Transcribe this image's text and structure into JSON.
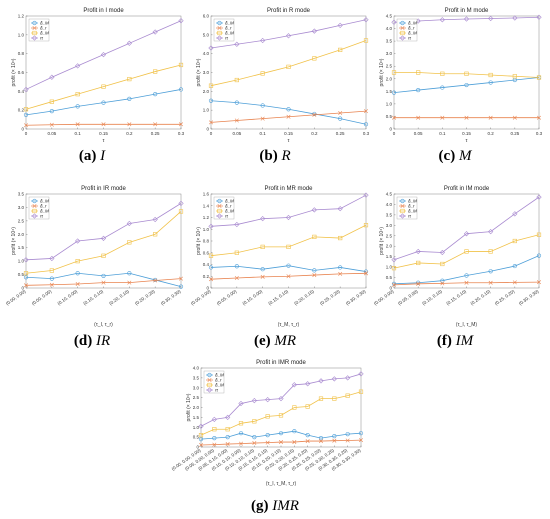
{
  "colors": {
    "blue": "#4e9fd8",
    "orange": "#e8834f",
    "yellow": "#f1c24a",
    "purple": "#a98bd0",
    "axis": "#555555"
  },
  "legend_labels": [
    "δ_M",
    "δ_r",
    "δ_M",
    "π"
  ],
  "chart_data": [
    {
      "id": "I",
      "type": "line",
      "title": "Profit in I mode",
      "caption_letter": "(a)",
      "caption_name": "I",
      "ylabel": "profit (× 10⁴)",
      "xlabel": "τ",
      "x": [
        0,
        0.05,
        0.1,
        0.15,
        0.2,
        0.25,
        0.3
      ],
      "xticks": [
        "0",
        "0.05",
        "0.1",
        "0.15",
        "0.2",
        "0.25",
        "0.3"
      ],
      "ylim": [
        0,
        1.2
      ],
      "yticks": [
        "0",
        "0.2",
        "0.4",
        "0.6",
        "0.8",
        "1.0",
        "1.2"
      ],
      "series": [
        {
          "name": "δ_M",
          "color": "blue",
          "values": [
            0.15,
            0.19,
            0.24,
            0.28,
            0.32,
            0.37,
            0.42
          ]
        },
        {
          "name": "δ_r",
          "color": "orange",
          "values": [
            0.04,
            0.045,
            0.05,
            0.05,
            0.05,
            0.05,
            0.05
          ]
        },
        {
          "name": "δ_M",
          "color": "yellow",
          "values": [
            0.21,
            0.29,
            0.37,
            0.45,
            0.53,
            0.61,
            0.68
          ]
        },
        {
          "name": "π",
          "color": "purple",
          "values": [
            0.42,
            0.55,
            0.67,
            0.79,
            0.91,
            1.03,
            1.15
          ]
        }
      ]
    },
    {
      "id": "R",
      "type": "line",
      "title": "Profit in R mode",
      "caption_letter": "(b)",
      "caption_name": "R",
      "ylabel": "profit (× 10⁴)",
      "xlabel": "τ",
      "x": [
        0,
        0.05,
        0.1,
        0.15,
        0.2,
        0.25,
        0.3
      ],
      "xticks": [
        "0",
        "0.05",
        "0.1",
        "0.15",
        "0.2",
        "0.25",
        "0.3"
      ],
      "ylim": [
        0,
        6
      ],
      "yticks": [
        "0",
        "1.0",
        "2.0",
        "3.0",
        "4.0",
        "5.0",
        "6.0"
      ],
      "series": [
        {
          "name": "δ_M",
          "color": "blue",
          "values": [
            1.5,
            1.4,
            1.25,
            1.05,
            0.8,
            0.55,
            0.25
          ]
        },
        {
          "name": "δ_r",
          "color": "orange",
          "values": [
            0.35,
            0.45,
            0.55,
            0.65,
            0.75,
            0.85,
            0.95
          ]
        },
        {
          "name": "δ_M",
          "color": "yellow",
          "values": [
            2.3,
            2.6,
            2.95,
            3.3,
            3.75,
            4.2,
            4.7
          ]
        },
        {
          "name": "π",
          "color": "purple",
          "values": [
            4.3,
            4.5,
            4.7,
            4.95,
            5.2,
            5.5,
            5.8
          ]
        }
      ]
    },
    {
      "id": "M",
      "type": "line",
      "title": "Profit in M mode",
      "caption_letter": "(c)",
      "caption_name": "M",
      "ylabel": "profit (× 10⁴)",
      "xlabel": "τ",
      "x": [
        0,
        0.05,
        0.1,
        0.15,
        0.2,
        0.25,
        0.3
      ],
      "xticks": [
        "0",
        "0.05",
        "0.1",
        "0.15",
        "0.2",
        "0.25",
        "0.3"
      ],
      "ylim": [
        0,
        4.5
      ],
      "yticks": [
        "0",
        "0.5",
        "1.0",
        "1.5",
        "2.0",
        "2.5",
        "3.0",
        "3.5",
        "4.0",
        "4.5"
      ],
      "series": [
        {
          "name": "δ_M",
          "color": "blue",
          "values": [
            1.45,
            1.55,
            1.65,
            1.75,
            1.85,
            1.95,
            2.05
          ]
        },
        {
          "name": "δ_r",
          "color": "orange",
          "values": [
            0.45,
            0.45,
            0.45,
            0.45,
            0.45,
            0.45,
            0.45
          ]
        },
        {
          "name": "δ_M",
          "color": "yellow",
          "values": [
            2.25,
            2.25,
            2.2,
            2.2,
            2.15,
            2.1,
            2.05
          ]
        },
        {
          "name": "π",
          "color": "purple",
          "values": [
            4.25,
            4.3,
            4.35,
            4.38,
            4.4,
            4.42,
            4.45
          ]
        }
      ]
    },
    {
      "id": "IR",
      "type": "line",
      "title": "Profit in IR mode",
      "caption_letter": "(d)",
      "caption_name": "IR",
      "ylabel": "profit (× 10⁴)",
      "xlabel": "(τ_I, τ_r)",
      "x": [
        0,
        1,
        2,
        3,
        4,
        5,
        6
      ],
      "xticks": [
        "(0.00, 0.00)",
        "(0.00, 0.05)",
        "(0.10, 0.00)",
        "(0.10, 0.10)",
        "(0.20, 0.10)",
        "(0.20, 0.20)",
        "(0.30, 0.30)"
      ],
      "ylim": [
        0,
        3.5
      ],
      "yticks": [
        "0",
        "0.5",
        "1.0",
        "1.5",
        "2.0",
        "2.5",
        "3.0",
        "3.5"
      ],
      "series": [
        {
          "name": "δ_M",
          "color": "blue",
          "values": [
            0.4,
            0.35,
            0.55,
            0.45,
            0.55,
            0.3,
            0.05
          ]
        },
        {
          "name": "δ_r",
          "color": "orange",
          "values": [
            0.1,
            0.12,
            0.15,
            0.2,
            0.2,
            0.28,
            0.35
          ]
        },
        {
          "name": "δ_M",
          "color": "yellow",
          "values": [
            0.55,
            0.65,
            1.0,
            1.2,
            1.7,
            2.0,
            2.85
          ]
        },
        {
          "name": "π",
          "color": "purple",
          "values": [
            1.05,
            1.1,
            1.75,
            1.85,
            2.4,
            2.55,
            3.15
          ]
        }
      ]
    },
    {
      "id": "MR",
      "type": "line",
      "title": "Profit in MR mode",
      "caption_letter": "(e)",
      "caption_name": "MR",
      "ylabel": "profit (× 10⁴)",
      "xlabel": "(τ_M, τ_r)",
      "x": [
        0,
        1,
        2,
        3,
        4,
        5,
        6
      ],
      "xticks": [
        "(0.00, 0.00)",
        "(0.05, 0.00)",
        "(0.10, 0.00)",
        "(0.15, 0.10)",
        "(0.20, 0.15)",
        "(0.25, 0.20)",
        "(0.30, 0.30)"
      ],
      "ylim": [
        0,
        1.6
      ],
      "yticks": [
        "0",
        "0.2",
        "0.4",
        "0.6",
        "0.8",
        "1.0",
        "1.2",
        "1.4",
        "1.6"
      ],
      "series": [
        {
          "name": "δ_M",
          "color": "blue",
          "values": [
            0.35,
            0.37,
            0.32,
            0.38,
            0.3,
            0.35,
            0.28
          ]
        },
        {
          "name": "δ_r",
          "color": "orange",
          "values": [
            0.15,
            0.17,
            0.19,
            0.2,
            0.22,
            0.24,
            0.25
          ]
        },
        {
          "name": "δ_M",
          "color": "yellow",
          "values": [
            0.55,
            0.6,
            0.7,
            0.7,
            0.87,
            0.85,
            1.07
          ]
        },
        {
          "name": "π",
          "color": "purple",
          "values": [
            1.05,
            1.08,
            1.18,
            1.2,
            1.33,
            1.35,
            1.58
          ]
        }
      ]
    },
    {
      "id": "IM",
      "type": "line",
      "title": "Profit in IM mode",
      "caption_letter": "(f)",
      "caption_name": "IM",
      "ylabel": "profit (× 10⁴)",
      "xlabel": "(τ_I, τ_M)",
      "x": [
        0,
        1,
        2,
        3,
        4,
        5,
        6
      ],
      "xticks": [
        "(0.00, 0.00)",
        "(0.05, 0.00)",
        "(0.10, 0.10)",
        "(0.15, 0.10)",
        "(0.20, 0.15)",
        "(0.25, 0.20)",
        "(0.30, 0.30)"
      ],
      "ylim": [
        0,
        4.5
      ],
      "yticks": [
        "0",
        "0.5",
        "1.0",
        "1.5",
        "2.0",
        "2.5",
        "3.0",
        "3.5",
        "4.0",
        "4.5"
      ],
      "series": [
        {
          "name": "δ_M",
          "color": "blue",
          "values": [
            0.2,
            0.25,
            0.35,
            0.6,
            0.8,
            1.05,
            1.55
          ]
        },
        {
          "name": "δ_r",
          "color": "orange",
          "values": [
            0.15,
            0.2,
            0.22,
            0.25,
            0.25,
            0.27,
            0.28
          ]
        },
        {
          "name": "δ_M",
          "color": "yellow",
          "values": [
            0.95,
            1.2,
            1.15,
            1.75,
            1.75,
            2.25,
            2.55
          ]
        },
        {
          "name": "π",
          "color": "purple",
          "values": [
            1.35,
            1.75,
            1.7,
            2.6,
            2.7,
            3.55,
            4.35
          ]
        }
      ]
    },
    {
      "id": "IMR",
      "type": "line",
      "title": "Profit in IMR mode",
      "caption_letter": "(g)",
      "caption_name": "IMR",
      "ylabel": "profit (× 10⁴)",
      "xlabel": "(τ_I, τ_M, τ_r)",
      "x": [
        0,
        1,
        2,
        3,
        4,
        5,
        6,
        7,
        8,
        9,
        10,
        11,
        12
      ],
      "xticks": [
        "(0.00, 0.00, 0.00)",
        "(0.05, 0.00, 0.00)",
        "(0.05, 0.10, 0.00)",
        "(0.10, 0.10, 0.05)",
        "(0.10, 0.10, 0.10)",
        "(0.15, 0.10, 0.15)",
        "(0.15, 0.20, 0.15)",
        "(0.20, 0.20, 0.15)",
        "(0.20, 0.25, 0.20)",
        "(0.25, 0.25, 0.20)",
        "(0.25, 0.30, 0.25)",
        "(0.30, 0.30, 0.25)",
        "(0.30, 0.30, 0.30)"
      ],
      "ylim": [
        0,
        4.0
      ],
      "yticks": [
        "0",
        "0.5",
        "1.0",
        "1.5",
        "2.0",
        "2.5",
        "3.0",
        "3.5",
        "4.0"
      ],
      "series": [
        {
          "name": "δ_M",
          "color": "blue",
          "values": [
            0.4,
            0.45,
            0.5,
            0.7,
            0.5,
            0.6,
            0.7,
            0.8,
            0.6,
            0.45,
            0.55,
            0.65,
            0.7
          ]
        },
        {
          "name": "δ_r",
          "color": "orange",
          "values": [
            0.1,
            0.12,
            0.15,
            0.17,
            0.2,
            0.22,
            0.25,
            0.25,
            0.3,
            0.3,
            0.32,
            0.33,
            0.35
          ]
        },
        {
          "name": "δ_M",
          "color": "yellow",
          "values": [
            0.6,
            0.9,
            0.9,
            1.2,
            1.3,
            1.55,
            1.6,
            2.0,
            2.05,
            2.45,
            2.45,
            2.6,
            2.8
          ]
        },
        {
          "name": "π",
          "color": "purple",
          "values": [
            1.05,
            1.4,
            1.5,
            2.2,
            2.35,
            2.4,
            2.45,
            3.15,
            3.2,
            3.35,
            3.45,
            3.5,
            3.7
          ]
        }
      ]
    }
  ]
}
